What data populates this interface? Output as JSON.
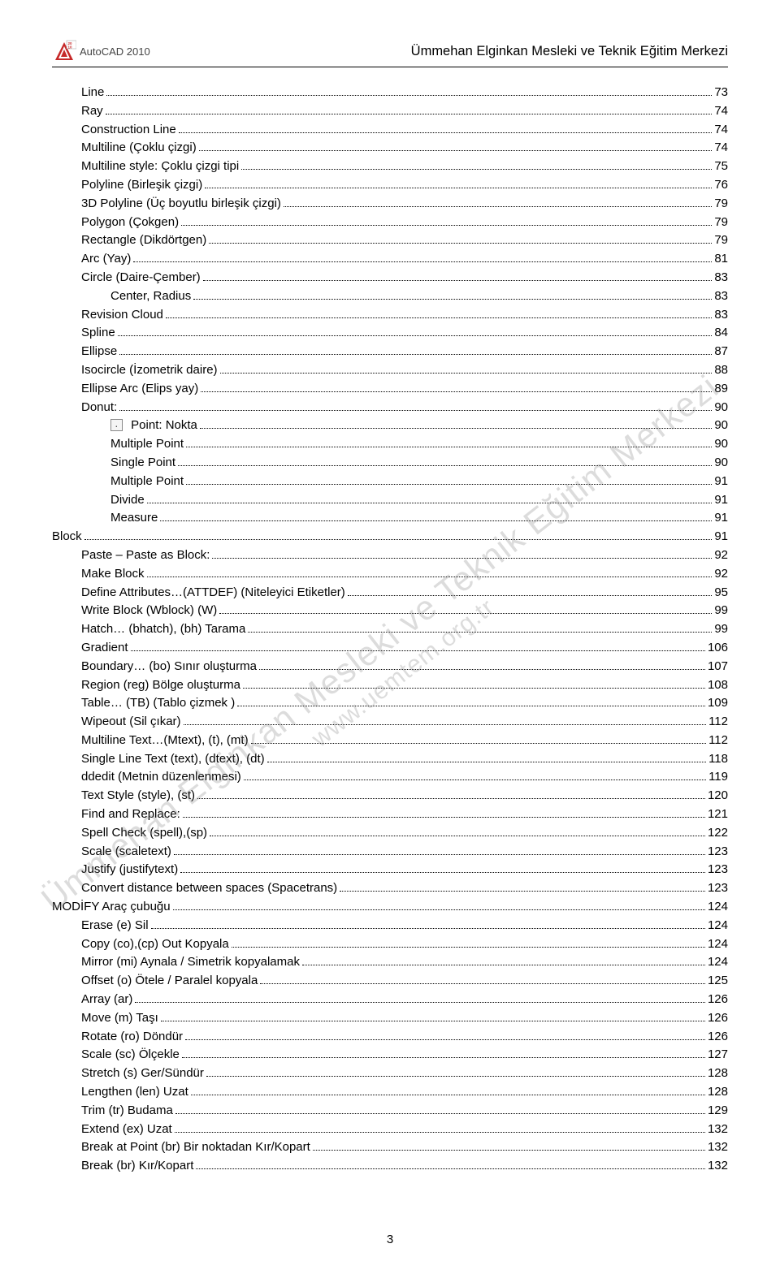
{
  "header": {
    "logo_name": "AutoCAD 2010",
    "title": "Ümmehan Elginkan Mesleki ve Teknik Eğitim Merkezi"
  },
  "watermark": {
    "line1": "Ümmehan Elginkan Mesleki ve Teknik Eğitim Merkezi",
    "line2": "www.uemtem.org.tr"
  },
  "page_number": "3",
  "toc": [
    {
      "label": "Line",
      "page": "73",
      "indent": 1
    },
    {
      "label": "Ray",
      "page": "74",
      "indent": 1
    },
    {
      "label": "Construction Line",
      "page": "74",
      "indent": 1
    },
    {
      "label": "Multiline (Çoklu çizgi)",
      "page": "74",
      "indent": 1
    },
    {
      "label": "Multiline style: Çoklu çizgi tipi",
      "page": "75",
      "indent": 1
    },
    {
      "label": "Polyline (Birleşik çizgi)",
      "page": "76",
      "indent": 1
    },
    {
      "label": "3D Polyline (Üç boyutlu birleşik çizgi)",
      "page": "79",
      "indent": 1
    },
    {
      "label": "Polygon (Çokgen)",
      "page": "79",
      "indent": 1
    },
    {
      "label": "Rectangle (Dikdörtgen)",
      "page": "79",
      "indent": 1
    },
    {
      "label": "Arc (Yay)",
      "page": "81",
      "indent": 1
    },
    {
      "label": "Circle (Daire-Çember)",
      "page": "83",
      "indent": 1
    },
    {
      "label": "Center, Radius",
      "page": "83",
      "indent": 2
    },
    {
      "label": "Revision Cloud",
      "page": "83",
      "indent": 1
    },
    {
      "label": "Spline",
      "page": "84",
      "indent": 1
    },
    {
      "label": "Ellipse",
      "page": "87",
      "indent": 1
    },
    {
      "label": "Isocircle (İzometrik daire)",
      "page": "88",
      "indent": 1
    },
    {
      "label": "Ellipse Arc (Elips yay)",
      "page": "89",
      "indent": 1
    },
    {
      "label": "Donut:",
      "page": "90",
      "indent": 1
    },
    {
      "label": " Point: Nokta",
      "page": "90",
      "indent": 2,
      "icon": true
    },
    {
      "label": "Multiple Point",
      "page": "90",
      "indent": 2
    },
    {
      "label": "Single Point",
      "page": "90",
      "indent": 2
    },
    {
      "label": "Multiple Point",
      "page": "91",
      "indent": 2
    },
    {
      "label": "Divide",
      "page": "91",
      "indent": 2
    },
    {
      "label": "Measure",
      "page": "91",
      "indent": 2
    },
    {
      "label": "Block",
      "page": "91",
      "indent": 0
    },
    {
      "label": "Paste – Paste as Block:",
      "page": "92",
      "indent": 1
    },
    {
      "label": "Make Block",
      "page": "92",
      "indent": 1
    },
    {
      "label": "Define Attributes…(ATTDEF) (Niteleyici Etiketler)",
      "page": "95",
      "indent": 1
    },
    {
      "label": "Write Block (Wblock) (W)",
      "page": "99",
      "indent": 1
    },
    {
      "label": "Hatch… (bhatch), (bh) Tarama",
      "page": "99",
      "indent": 1
    },
    {
      "label": "Gradient",
      "page": "106",
      "indent": 1
    },
    {
      "label": "Boundary… (bo) Sınır oluşturma",
      "page": "107",
      "indent": 1
    },
    {
      "label": "Region (reg)   Bölge oluşturma",
      "page": "108",
      "indent": 1
    },
    {
      "label": "Table… (TB) (Tablo çizmek )",
      "page": "109",
      "indent": 1
    },
    {
      "label": "Wipeout (Sil çıkar)",
      "page": "112",
      "indent": 1
    },
    {
      "label": "Multiline Text…(Mtext), (t), (mt)",
      "page": "112",
      "indent": 1
    },
    {
      "label": "Single Line Text (text), (dtext), (dt)",
      "page": "118",
      "indent": 1
    },
    {
      "label": "ddedit (Metnin düzenlenmesi)",
      "page": "119",
      "indent": 1
    },
    {
      "label": "Text Style (style), (st)",
      "page": "120",
      "indent": 1
    },
    {
      "label": "Find and Replace:",
      "page": "121",
      "indent": 1
    },
    {
      "label": "Spell Check (spell),(sp)",
      "page": "122",
      "indent": 1
    },
    {
      "label": "Scale (scaletext)",
      "page": "123",
      "indent": 1
    },
    {
      "label": "Justify (justifytext)",
      "page": "123",
      "indent": 1
    },
    {
      "label": "Convert distance between spaces (Spacetrans)",
      "page": "123",
      "indent": 1
    },
    {
      "label": "MODİFY Araç çubuğu",
      "page": "124",
      "indent": 0
    },
    {
      "label": "Erase (e) Sil",
      "page": "124",
      "indent": 1
    },
    {
      "label": "Copy (co),(cp) Out Kopyala",
      "page": "124",
      "indent": 1
    },
    {
      "label": "Mirror (mi) Aynala / Simetrik kopyalamak",
      "page": "124",
      "indent": 1
    },
    {
      "label": "Offset (o) Ötele / Paralel kopyala",
      "page": "125",
      "indent": 1
    },
    {
      "label": "Array (ar)",
      "page": "126",
      "indent": 1
    },
    {
      "label": "Move (m) Taşı",
      "page": "126",
      "indent": 1
    },
    {
      "label": "Rotate (ro) Döndür",
      "page": "126",
      "indent": 1
    },
    {
      "label": "Scale (sc) Ölçekle",
      "page": "127",
      "indent": 1
    },
    {
      "label": "Stretch (s) Ger/Sündür",
      "page": "128",
      "indent": 1
    },
    {
      "label": "Lengthen (len) Uzat",
      "page": "128",
      "indent": 1
    },
    {
      "label": "Trim (tr) Budama",
      "page": "129",
      "indent": 1
    },
    {
      "label": "Extend (ex) Uzat",
      "page": "132",
      "indent": 1
    },
    {
      "label": "Break at Point (br) Bir noktadan Kır/Kopart",
      "page": "132",
      "indent": 1
    },
    {
      "label": "Break (br) Kır/Kopart",
      "page": "132",
      "indent": 1
    }
  ]
}
